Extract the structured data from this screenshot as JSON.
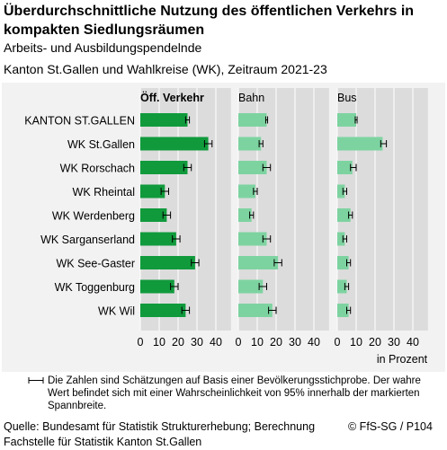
{
  "header": {
    "title": "Überdurchschnittliche Nutzung des öffentlichen Verkehrs in kompakten Siedlungsräumen",
    "subtitle1": "Arbeits- und Ausbildungspendelnde",
    "subtitle2": "Kanton St.Gallen und Wahlkreise (WK), Zeitraum 2021-23"
  },
  "footnote": {
    "text": "Die Zahlen sind Schätzungen auf Basis einer Bevölkerungsstichprobe. Der wahre Wert befindet sich mit einer Wahrscheinlichkeit von 95% innerhalb der markierten Spannbreite."
  },
  "footer": {
    "source": "Quelle: Bundesamt für Statistik Strukturerhebung; Berechnung Fachstelle für Statistik Kanton St.Gallen",
    "copyright": "© FfS-SG / P104"
  },
  "chart_data": {
    "type": "bar",
    "orientation": "horizontal",
    "unit_label": "in Prozent",
    "categories": [
      "KANTON ST.GALLEN",
      "WK St.Gallen",
      "WK Rorschach",
      "WK Rheintal",
      "WK Werdenberg",
      "WK Sarganserland",
      "WK See-Gaster",
      "WK Toggenburg",
      "WK Wil"
    ],
    "xlim": [
      0,
      48
    ],
    "xticks": [
      0,
      10,
      20,
      30,
      40
    ],
    "grid": true,
    "colors": {
      "strong": "#109a3c",
      "light": "#7dd3a0",
      "panel_bg": "#dcdcdc",
      "error_bar": "#000000"
    },
    "series": [
      {
        "name": "Öff. Verkehr",
        "bold": true,
        "color": "#109a3c",
        "values": [
          25,
          36,
          25,
          13,
          14,
          19,
          29,
          18,
          24
        ],
        "ci": [
          [
            24,
            26
          ],
          [
            34,
            38
          ],
          [
            23,
            27
          ],
          [
            11,
            15
          ],
          [
            12,
            16
          ],
          [
            17,
            21
          ],
          [
            27,
            31
          ],
          [
            16,
            20
          ],
          [
            22,
            26
          ]
        ]
      },
      {
        "name": "Bahn",
        "bold": false,
        "color": "#7dd3a0",
        "values": [
          15,
          12,
          15,
          9,
          7,
          15,
          21,
          13,
          18
        ],
        "ci": [
          [
            14.5,
            15.5
          ],
          [
            11,
            13
          ],
          [
            13,
            17
          ],
          [
            8,
            10
          ],
          [
            6,
            8
          ],
          [
            13,
            17
          ],
          [
            19,
            23
          ],
          [
            11,
            15
          ],
          [
            16,
            20
          ]
        ]
      },
      {
        "name": "Bus",
        "bold": false,
        "color": "#7dd3a0",
        "values": [
          10,
          24,
          8,
          4,
          7,
          4,
          6,
          5,
          6
        ],
        "ci": [
          [
            9.5,
            10.5
          ],
          [
            23,
            26
          ],
          [
            7,
            10
          ],
          [
            3,
            5
          ],
          [
            6,
            8
          ],
          [
            3,
            5
          ],
          [
            5,
            7
          ],
          [
            4,
            6
          ],
          [
            5,
            7
          ]
        ]
      }
    ]
  }
}
